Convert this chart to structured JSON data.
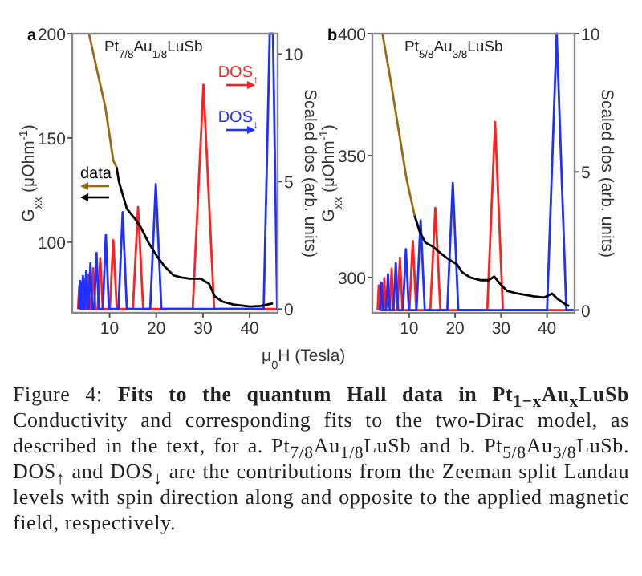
{
  "chart_data": [
    {
      "type": "line",
      "title": "Pt$_{7/8}$Au$_{1/8}$LuSb",
      "xlabel": "μ$_{0}$H (Tesla)",
      "ylabel": "G$_{xx}$ (μOhm$^{-1}$)",
      "y2label": "Scaled dos (arb. units)",
      "annotations": [
        "a",
        "Figure 4:",
        "Fits to the quantum Hall data in Pt$_{1−x}$Au$_{x}$LuSb",
        "Conductivity and corresponding fits to the two-Dirac model, as described in the text, for a. Pt$_{7/8}$Au$_{1/8}$LuSb and b. Pt$_{5/8}$Au$_{3/8}$LuSb. DOS$_{↑}$ and DOS$_{↓}$ are the contributions from the Zeeman split Landau levels with spin direction along and opposite to the applied magnetic field, respectively."
      ],
      "xlim": [
        2,
        46
      ],
      "xticks": [
        10,
        20,
        30,
        40
      ],
      "ylim": [
        66,
        200
      ],
      "yticks": [
        100,
        150,
        200
      ],
      "y2lim": [
        -0.15,
        10.8
      ],
      "y2ticks": [
        0,
        5,
        10
      ],
      "legend": "top right",
      "series": [
        {
          "name": "DOS$_{↑}$",
          "color": "#ff2020",
          "axis": "y2",
          "x": [
            3.25,
            3.5,
            3.75,
            3.75,
            4.0,
            4.25,
            4.3,
            4.6,
            4.9,
            5.0,
            5.4,
            5.8,
            6.05,
            6.5,
            6.95,
            7.45,
            8.0,
            8.55,
            10.05,
            10.8,
            11.55,
            15.0,
            16.1,
            17.2,
            27.8,
            30.1,
            32.4,
            46
          ],
          "values": [
            0,
            0.9,
            0,
            0,
            1.0,
            0,
            0,
            1.15,
            0,
            0,
            1.35,
            0,
            0,
            1.6,
            0,
            0,
            2.0,
            0,
            0,
            2.7,
            0,
            0,
            4.0,
            0,
            0,
            8.8,
            0,
            0
          ]
        },
        {
          "name": "DOS$_{↓}$",
          "color": "#2030ff",
          "axis": "y2",
          "x": [
            3.45,
            3.7,
            3.95,
            4.0,
            4.3,
            4.6,
            4.65,
            5.0,
            5.35,
            5.5,
            5.9,
            6.3,
            6.7,
            7.2,
            7.7,
            8.55,
            9.2,
            9.85,
            11.9,
            12.8,
            13.7,
            18.7,
            19.9,
            21.1,
            43.0,
            44.3,
            45.0,
            45.9,
            46
          ],
          "values": [
            0,
            1.1,
            0,
            0,
            1.3,
            0,
            0,
            1.5,
            0,
            0,
            1.8,
            0,
            0,
            2.2,
            0,
            0,
            2.9,
            0,
            0,
            3.8,
            0,
            0,
            4.9,
            0,
            0,
            10.8,
            10.8,
            0,
            0
          ]
        },
        {
          "color": "#9b6a12",
          "x": [
            5.6,
            7.3,
            9.1,
            10.8,
            11.5
          ],
          "values": [
            200,
            182.6,
            164.7,
            139,
            136
          ]
        },
        {
          "name": "data",
          "color": "#000000",
          "x": [
            11.5,
            12.0,
            13.7,
            15.5,
            16.7,
            18.4,
            20.2,
            21.9,
            23.7,
            25.4,
            27.2,
            29.5,
            31.3,
            32.5,
            34.2,
            36.5,
            40.1,
            42.4,
            45.0
          ],
          "values": [
            136,
            129,
            116,
            111,
            107,
            99.5,
            93,
            88,
            84,
            83,
            82.4,
            82.4,
            80,
            74,
            71.4,
            70,
            69,
            69.3,
            70.6
          ]
        }
      ]
    },
    {
      "type": "line",
      "title": "Pt$_{5/8}$Au$_{3/8}$LuSb",
      "ylabel": "G$_{xx}$ (μOhm$^{-1}$)",
      "y2label": "Scaled dos (arb. units)",
      "annotations": [
        "b"
      ],
      "xlim": [
        2,
        46
      ],
      "xticks": [
        10,
        20,
        30,
        40
      ],
      "ylim": [
        285.5,
        400
      ],
      "yticks": [
        300,
        350,
        400
      ],
      "y2lim": [
        -0.1,
        10
      ],
      "y2ticks": [
        0,
        5,
        10
      ],
      "series": [
        {
          "color": "#ff2020",
          "axis": "y2",
          "x": [
            3.15,
            3.4,
            3.65,
            4.3,
            4.6,
            4.9,
            5.8,
            6.2,
            6.6,
            7.45,
            8.0,
            8.55,
            10.05,
            10.8,
            11.55,
            14.6,
            15.7,
            16.8,
            27.0,
            28.7,
            30.4,
            46
          ],
          "values": [
            0,
            0.9,
            0,
            0,
            1.15,
            0,
            0,
            1.5,
            0,
            0,
            1.9,
            0,
            0,
            2.5,
            0,
            0,
            3.7,
            0,
            0,
            6.8,
            0,
            0
          ]
        },
        {
          "color": "#2030ff",
          "axis": "y2",
          "x": [
            3.7,
            4.0,
            4.3,
            5.0,
            5.4,
            5.8,
            6.6,
            7.1,
            7.6,
            8.65,
            9.3,
            9.95,
            11.6,
            12.5,
            13.4,
            18.3,
            19.5,
            20.7,
            40.0,
            42.1,
            44.2,
            46
          ],
          "values": [
            0,
            1.0,
            0,
            0,
            1.3,
            0,
            0,
            1.7,
            0,
            0,
            2.2,
            0,
            0,
            3.25,
            0,
            0,
            4.6,
            0,
            0,
            10,
            0,
            0
          ]
        },
        {
          "color": "#9b6a12",
          "x": [
            4.2,
            6.0,
            7.7,
            9.4,
            11.2
          ],
          "values": [
            400,
            380.6,
            360.7,
            340.8,
            325.4
          ]
        },
        {
          "color": "#000000",
          "x": [
            11.2,
            12.3,
            13.5,
            15.2,
            16.9,
            18.7,
            20.4,
            21.5,
            23.3,
            25.6,
            27.3,
            28.5,
            29.6,
            31.3,
            33.6,
            37.1,
            39.4,
            41.1,
            42.3,
            44.0,
            44.8
          ],
          "values": [
            325.4,
            318.8,
            314.4,
            312.6,
            309.9,
            307.3,
            305.5,
            302.2,
            300,
            298.9,
            298.9,
            300.4,
            297.8,
            294.5,
            293.4,
            292.3,
            291.8,
            293.4,
            291.2,
            289,
            288.3
          ]
        }
      ]
    }
  ]
}
